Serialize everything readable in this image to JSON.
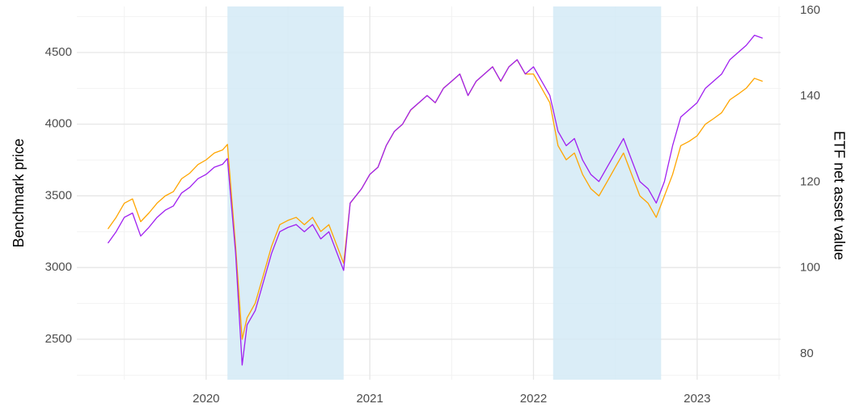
{
  "chart_data": {
    "type": "line",
    "ylabel": "Benchmark price",
    "y2label": "ETF net asset value",
    "x": [
      2019.4,
      2019.45,
      2019.5,
      2019.55,
      2019.6,
      2019.65,
      2019.7,
      2019.75,
      2019.8,
      2019.85,
      2019.9,
      2019.95,
      2020.0,
      2020.05,
      2020.1,
      2020.13,
      2020.18,
      2020.22,
      2020.25,
      2020.3,
      2020.35,
      2020.4,
      2020.45,
      2020.5,
      2020.55,
      2020.6,
      2020.65,
      2020.7,
      2020.75,
      2020.8,
      2020.84,
      2020.88,
      2020.95,
      2021.0,
      2021.05,
      2021.1,
      2021.15,
      2021.2,
      2021.25,
      2021.3,
      2021.35,
      2021.4,
      2021.45,
      2021.5,
      2021.55,
      2021.6,
      2021.65,
      2021.7,
      2021.75,
      2021.8,
      2021.85,
      2021.9,
      2021.95,
      2022.0,
      2022.05,
      2022.1,
      2022.15,
      2022.2,
      2022.25,
      2022.3,
      2022.35,
      2022.4,
      2022.45,
      2022.5,
      2022.55,
      2022.6,
      2022.65,
      2022.7,
      2022.75,
      2022.8,
      2022.85,
      2022.9,
      2022.95,
      2023.0,
      2023.05,
      2023.1,
      2023.15,
      2023.2,
      2023.25,
      2023.3,
      2023.35,
      2023.4
    ],
    "series": [
      {
        "color": "#ffa500",
        "axis": "y2",
        "values": [
          109.1,
          111.8,
          115.1,
          116.1,
          110.8,
          112.8,
          115.1,
          116.8,
          117.8,
          120.8,
          122.1,
          124.1,
          125.2,
          126.8,
          127.5,
          128.8,
          105.1,
          83.4,
          88.4,
          91.8,
          98.4,
          105.1,
          110.1,
          111.1,
          111.8,
          110.1,
          111.8,
          108.5,
          110.1,
          105.1,
          101.1,
          115.1,
          118.5,
          121.8,
          123.5,
          128.5,
          131.8,
          133.5,
          136.8,
          138.5,
          140.2,
          138.5,
          141.9,
          143.5,
          145.2,
          140.2,
          143.5,
          145.2,
          146.9,
          143.5,
          146.9,
          148.5,
          145.2,
          145.2,
          141.9,
          138.5,
          128.5,
          125.2,
          126.8,
          121.8,
          118.5,
          116.8,
          120.1,
          123.5,
          126.8,
          121.8,
          116.8,
          115.1,
          111.8,
          116.8,
          121.8,
          128.5,
          129.5,
          130.8,
          133.5,
          134.8,
          136.2,
          139.2,
          140.5,
          141.9,
          144.2,
          143.5
        ]
      },
      {
        "color": "#a020f0",
        "values": [
          3170,
          3250,
          3350,
          3380,
          3220,
          3280,
          3350,
          3400,
          3430,
          3520,
          3560,
          3620,
          3650,
          3700,
          3720,
          3760,
          3100,
          2320,
          2600,
          2700,
          2900,
          3100,
          3250,
          3280,
          3300,
          3250,
          3300,
          3200,
          3250,
          3100,
          2980,
          3450,
          3550,
          3650,
          3700,
          3850,
          3950,
          4000,
          4100,
          4150,
          4200,
          4150,
          4250,
          4300,
          4350,
          4200,
          4300,
          4350,
          4400,
          4300,
          4400,
          4450,
          4350,
          4400,
          4300,
          4200,
          3950,
          3850,
          3900,
          3750,
          3650,
          3600,
          3700,
          3800,
          3900,
          3750,
          3600,
          3550,
          3450,
          3600,
          3850,
          4050,
          4100,
          4150,
          4250,
          4300,
          4350,
          4450,
          4500,
          4550,
          4620,
          4600
        ]
      }
    ],
    "xlim": [
      2019.21,
      2023.51
    ],
    "xticks": [
      2020,
      2021,
      2022,
      2023
    ],
    "x_minor_ticks": [
      2019.5,
      2020.5,
      2021.5,
      2022.5,
      2023.5
    ],
    "ylim": [
      2218,
      4821
    ],
    "yticks": [
      2500,
      3000,
      3500,
      4000,
      4500
    ],
    "y_minor_ticks": [
      2250,
      2750,
      3250,
      3750,
      4250,
      4750
    ],
    "y2lim": [
      73.98,
      160.94
    ],
    "y2ticks": [
      80,
      100,
      120,
      140,
      160
    ],
    "grid": true,
    "shaded_regions": [
      [
        2020.13,
        2020.84
      ],
      [
        2022.12,
        2022.78
      ]
    ],
    "shade_color": "#d4eaf6"
  }
}
